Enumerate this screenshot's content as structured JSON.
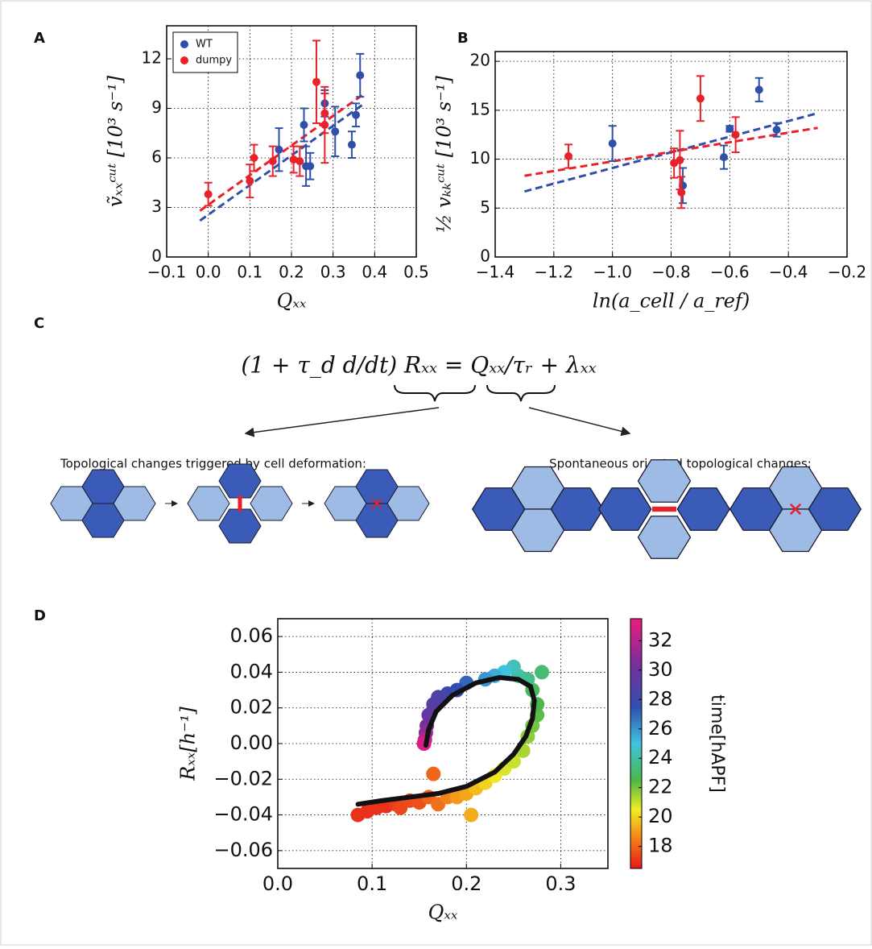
{
  "chart_data": [
    {
      "label": "A",
      "type": "scatter",
      "x_label": "Qₓₓ",
      "y_label": "ṽₓₓᶜᵘᵗ [10³ s⁻¹]",
      "xlim": [
        -0.1,
        0.5
      ],
      "xticks": [
        {
          "value": -0.1,
          "label": "−0.1"
        },
        {
          "value": 0,
          "label": "0.0"
        },
        0.1,
        0.2,
        0.3,
        0.4,
        0.5
      ],
      "ylim": [
        0,
        14
      ],
      "yticks": [
        0,
        3,
        6,
        9,
        12
      ],
      "grid": true,
      "legend": "upper left",
      "series": [
        {
          "name": "WT",
          "color": "#2f4fa8",
          "x": [
            0.17,
            0.23,
            0.235,
            0.245,
            0.28,
            0.305,
            0.345,
            0.355,
            0.365
          ],
          "values": [
            6.5,
            8.0,
            5.5,
            5.5,
            9.3,
            7.6,
            6.8,
            8.6,
            11.0
          ],
          "errors": [
            1.3,
            1.0,
            1.2,
            0.8,
            0.8,
            1.5,
            0.8,
            0.7,
            1.3
          ]
        },
        {
          "name": "dumpy",
          "color": "#e8222a",
          "x": [
            0.0,
            0.1,
            0.11,
            0.155,
            0.205,
            0.22,
            0.26,
            0.28,
            0.28
          ],
          "values": [
            3.8,
            4.6,
            6.0,
            5.8,
            5.9,
            5.8,
            10.6,
            8.0,
            8.7
          ],
          "errors": [
            0.7,
            1.0,
            0.8,
            0.9,
            0.8,
            0.9,
            2.5,
            2.3,
            1.2
          ]
        }
      ],
      "fits": [
        {
          "color": "#2f4fa8",
          "x": [
            -0.02,
            0.37
          ],
          "values": [
            2.2,
            9.2
          ]
        },
        {
          "color": "#e8222a",
          "x": [
            -0.02,
            0.37
          ],
          "values": [
            2.8,
            9.8
          ]
        }
      ]
    },
    {
      "label": "B",
      "type": "scatter",
      "x_label": "ln(a_cell / a_ref)",
      "y_label": "½ vₖₖᶜᵘᵗ [10³ s⁻¹]",
      "xlim": [
        -1.4,
        -0.2
      ],
      "xticks": [
        {
          "value": -1.4,
          "label": "−1.4"
        },
        {
          "value": -1.2,
          "label": "−1.2"
        },
        {
          "value": -1.0,
          "label": "−1.0"
        },
        {
          "value": -0.8,
          "label": "−0.8"
        },
        {
          "value": -0.6,
          "label": "−0.6"
        },
        {
          "value": -0.4,
          "label": "−0.4"
        },
        {
          "value": -0.2,
          "label": "−0.2"
        }
      ],
      "ylim": [
        0,
        21
      ],
      "yticks": [
        0,
        5,
        10,
        15,
        20
      ],
      "grid": true,
      "series": [
        {
          "color": "#2f4fa8",
          "x": [
            -1.0,
            -0.76,
            -0.62,
            -0.6,
            -0.5,
            -0.44
          ],
          "values": [
            11.6,
            7.3,
            10.2,
            13.1,
            17.1,
            13.0
          ],
          "errors": [
            1.8,
            1.8,
            1.2,
            0.3,
            1.2,
            0.7
          ]
        },
        {
          "color": "#e8222a",
          "x": [
            -1.15,
            -0.79,
            -0.77,
            -0.765,
            -0.7,
            -0.58
          ],
          "values": [
            10.3,
            9.6,
            9.9,
            6.6,
            16.2,
            12.5
          ],
          "errors": [
            1.2,
            1.5,
            3.0,
            1.6,
            2.3,
            1.8
          ]
        }
      ],
      "fits": [
        {
          "color": "#2f4fa8",
          "x": [
            -1.3,
            -0.3
          ],
          "values": [
            6.7,
            14.7
          ]
        },
        {
          "color": "#e8222a",
          "x": [
            -1.3,
            -0.3
          ],
          "values": [
            8.3,
            13.2
          ]
        }
      ]
    },
    {
      "label": "D",
      "type": "colorscatter",
      "x_label": "Qₓₓ",
      "y_label": "Rₓₓ[h⁻¹]",
      "xlim": [
        0,
        0.35
      ],
      "xticks": [
        {
          "value": 0,
          "label": "0.0"
        },
        0.1,
        0.2,
        0.3
      ],
      "ylim": [
        -0.07,
        0.07
      ],
      "yticks": [
        {
          "value": -0.06,
          "label": "−0.06"
        },
        {
          "value": -0.04,
          "label": "−0.04"
        },
        {
          "value": -0.02,
          "label": "−0.02"
        },
        {
          "value": 0,
          "label": "0.00"
        },
        0.02,
        0.04,
        0.06
      ],
      "grid": true,
      "series": [
        {
          "x": [
            0.085,
            0.095,
            0.105,
            0.115,
            0.125,
            0.13,
            0.14,
            0.15,
            0.16,
            0.165,
            0.17,
            0.18,
            0.19,
            0.2,
            0.205,
            0.21,
            0.22,
            0.23,
            0.24,
            0.25,
            0.26,
            0.265,
            0.27,
            0.275,
            0.275,
            0.27,
            0.28,
            0.265,
            0.255,
            0.25,
            0.24,
            0.23,
            0.22,
            0.2,
            0.19,
            0.18,
            0.17,
            0.165,
            0.16,
            0.158,
            0.157,
            0.156,
            0.155
          ],
          "values": [
            -0.04,
            -0.038,
            -0.036,
            -0.035,
            -0.034,
            -0.036,
            -0.032,
            -0.033,
            -0.03,
            -0.017,
            -0.034,
            -0.03,
            -0.03,
            -0.028,
            -0.04,
            -0.025,
            -0.022,
            -0.018,
            -0.014,
            -0.01,
            -0.004,
            0.004,
            0.01,
            0.016,
            0.022,
            0.03,
            0.04,
            0.036,
            0.038,
            0.043,
            0.04,
            0.038,
            0.036,
            0.034,
            0.03,
            0.028,
            0.026,
            0.022,
            0.016,
            0.01,
            0.006,
            0.002,
            0.0
          ],
          "time": [
            17,
            17,
            17,
            17,
            17.2,
            17.4,
            17.5,
            17.6,
            18,
            18,
            18.2,
            18.6,
            19,
            19.2,
            19.3,
            19.6,
            20,
            20.4,
            20.8,
            21,
            21.4,
            21.7,
            22,
            22.3,
            22.6,
            22.9,
            23.2,
            23.6,
            24,
            24.4,
            25,
            25.5,
            26,
            27,
            27.5,
            28,
            28.6,
            29,
            29.6,
            30.2,
            31,
            32,
            33
          ]
        }
      ],
      "curve": {
        "color": "#111111",
        "x": [
          0.085,
          0.11,
          0.14,
          0.17,
          0.2,
          0.23,
          0.25,
          0.263,
          0.27,
          0.272,
          0.268,
          0.255,
          0.235,
          0.21,
          0.185,
          0.168,
          0.16,
          0.157
        ],
        "values": [
          -0.034,
          -0.032,
          -0.03,
          -0.028,
          -0.024,
          -0.016,
          -0.006,
          0.004,
          0.014,
          0.024,
          0.032,
          0.036,
          0.037,
          0.034,
          0.027,
          0.018,
          0.008,
          -0.001
        ]
      },
      "colorbar": {
        "label": "time[hAPF]",
        "lim": [
          16.5,
          33.5
        ],
        "ticks": [
          18,
          20,
          22,
          24,
          26,
          28,
          30,
          32
        ],
        "colormap": [
          [
            16.5,
            "#e8171b"
          ],
          [
            19,
            "#f39a1a"
          ],
          [
            20.5,
            "#f2ee22"
          ],
          [
            22.5,
            "#4cb748"
          ],
          [
            25,
            "#3fc4e0"
          ],
          [
            27.5,
            "#2f4fb0"
          ],
          [
            30.5,
            "#7b2e9a"
          ],
          [
            33.5,
            "#ee1b80"
          ]
        ]
      }
    }
  ],
  "panel_c": {
    "label": "C",
    "equation": "(1 + τ_d d/dt) Rₓₓ = Qₓₓ/τᵣ + λₓₓ",
    "left_caption": "Topological changes triggered by cell deformation:",
    "right_caption": "Spontaneous oriented topological changes:"
  }
}
